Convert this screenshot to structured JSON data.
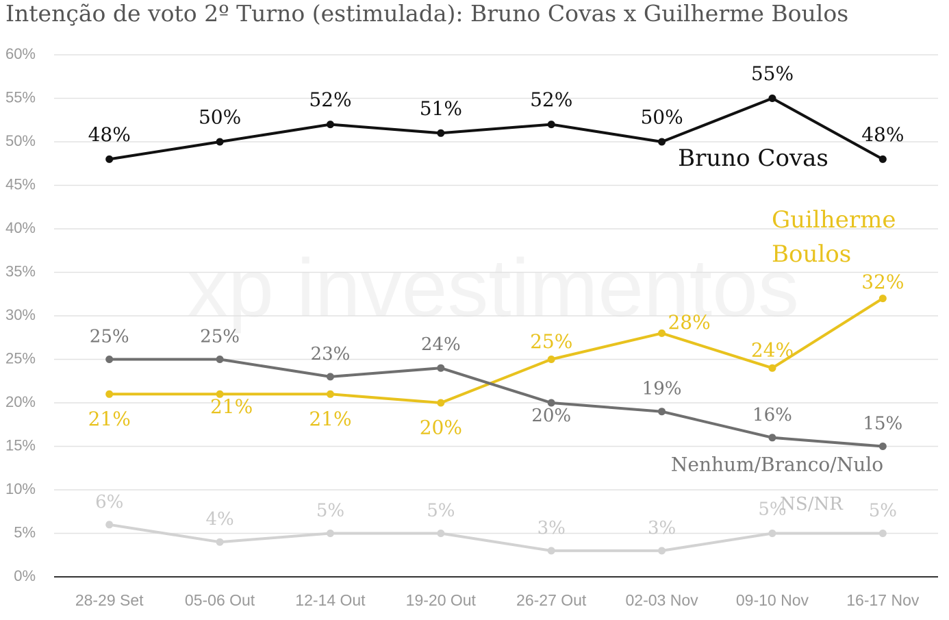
{
  "chart_data": {
    "type": "line",
    "title": "Intenção de voto 2º Turno (estimulada): Bruno Covas x Guilherme Boulos",
    "watermark": "xp investimentos",
    "categories": [
      "28-29 Set",
      "05-06 Out",
      "12-14 Out",
      "19-20 Out",
      "26-27 Out",
      "02-03 Nov",
      "09-10 Nov",
      "16-17 Nov"
    ],
    "series": [
      {
        "name": "Bruno Covas",
        "color": "#111111",
        "values": [
          48,
          50,
          52,
          51,
          52,
          50,
          55,
          48
        ],
        "value_labels": [
          "48%",
          "50%",
          "52%",
          "51%",
          "52%",
          "50%",
          "55%",
          "48%"
        ]
      },
      {
        "name": "Guilherme Boulos",
        "color": "#e8c21e",
        "values": [
          21,
          21,
          21,
          20,
          25,
          28,
          24,
          32
        ],
        "value_labels": [
          "21%",
          "21%",
          "21%",
          "20%",
          "25%",
          "28%",
          "24%",
          "32%"
        ]
      },
      {
        "name": "Nenhum/Branco/Nulo",
        "color": "#6f6f6f",
        "values": [
          25,
          25,
          23,
          24,
          20,
          19,
          16,
          15
        ],
        "value_labels": [
          "25%",
          "25%",
          "23%",
          "24%",
          "20%",
          "19%",
          "16%",
          "15%"
        ]
      },
      {
        "name": "NS/NR",
        "color": "#d2d2d2",
        "values": [
          6,
          4,
          5,
          5,
          3,
          3,
          5,
          5
        ],
        "value_labels": [
          "6%",
          "4%",
          "5%",
          "5%",
          "3%",
          "3%",
          "5%",
          "5%"
        ]
      }
    ],
    "ylim": [
      0,
      60
    ],
    "yticks": [
      {
        "value": 0,
        "label": "0%"
      },
      {
        "value": 5,
        "label": "5%"
      },
      {
        "value": 10,
        "label": "10%"
      },
      {
        "value": 15,
        "label": "15%"
      },
      {
        "value": 20,
        "label": "20%"
      },
      {
        "value": 25,
        "label": "25%"
      },
      {
        "value": 30,
        "label": "30%"
      },
      {
        "value": 35,
        "label": "35%"
      },
      {
        "value": 40,
        "label": "40%"
      },
      {
        "value": 45,
        "label": "45%"
      },
      {
        "value": 50,
        "label": "50%"
      },
      {
        "value": 55,
        "label": "55%"
      },
      {
        "value": 60,
        "label": "60%"
      }
    ],
    "grid": true
  }
}
